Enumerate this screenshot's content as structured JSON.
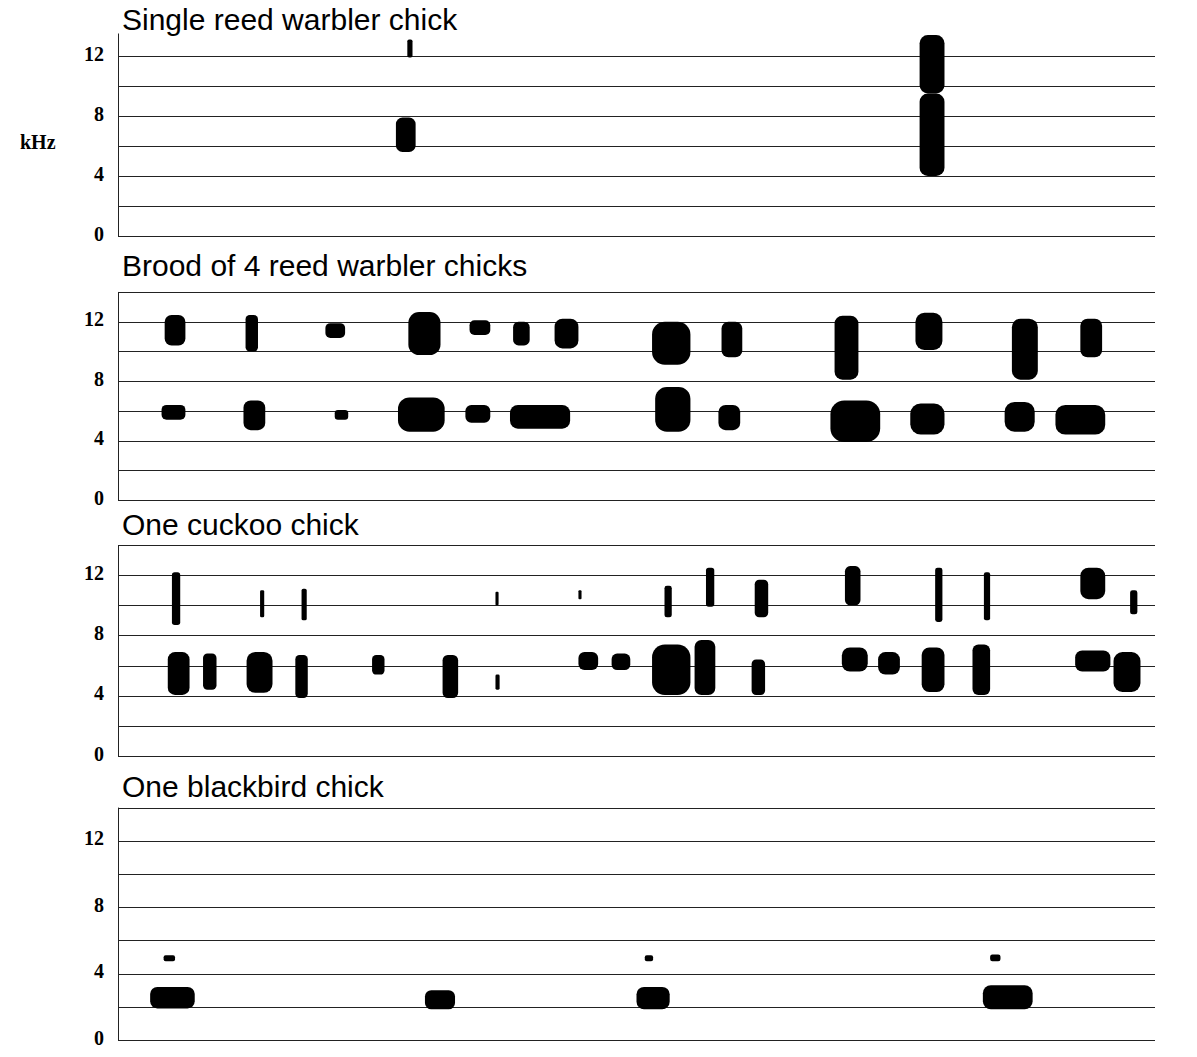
{
  "chart_data": [
    {
      "type": "spectrogram",
      "title": "Single reed warbler chick",
      "ylabel": "kHz",
      "xlim": [
        0,
        100
      ],
      "ylim": [
        0,
        13.5
      ],
      "yticks": [
        0,
        4,
        8,
        12
      ],
      "grid": true,
      "tick_labels": "y",
      "color": "#000000",
      "syllables": {
        "start": [
          26.8,
          27.9,
          77.3,
          77.3
        ],
        "end": [
          28.7,
          28.4,
          79.7,
          79.7
        ],
        "low": [
          5.6,
          11.9,
          4.0,
          9.5
        ],
        "high": [
          7.9,
          13.1,
          9.5,
          13.4
        ]
      }
    },
    {
      "type": "spectrogram",
      "title": "Brood of 4 reed warbler chicks",
      "xlim": [
        0,
        100
      ],
      "ylim": [
        0,
        14
      ],
      "yticks": [
        0,
        4,
        8,
        12
      ],
      "grid": true,
      "tick_labels": "y",
      "color": "#000000",
      "syllables": {
        "start": [
          4.5,
          12.3,
          20.0,
          28.0,
          33.9,
          38.1,
          42.1,
          51.5,
          58.2,
          69.1,
          76.9,
          86.2,
          92.8,
          4.2,
          12.1,
          20.9,
          27.0,
          33.5,
          37.8,
          51.8,
          57.9,
          68.7,
          76.4,
          85.5,
          90.4
        ],
        "end": [
          6.5,
          13.5,
          21.9,
          31.1,
          35.9,
          39.7,
          44.4,
          55.2,
          60.2,
          71.4,
          79.5,
          88.7,
          94.9,
          6.5,
          14.2,
          22.2,
          31.5,
          35.9,
          43.6,
          55.2,
          60.0,
          73.5,
          79.7,
          88.4,
          95.2
        ],
        "low": [
          10.4,
          10.0,
          10.9,
          9.75,
          11.1,
          10.4,
          10.2,
          9.1,
          9.6,
          8.1,
          10.1,
          8.1,
          9.6,
          5.4,
          4.7,
          5.4,
          4.6,
          5.2,
          4.8,
          4.6,
          4.7,
          3.9,
          4.4,
          4.6,
          4.4
        ],
        "high": [
          12.45,
          12.45,
          11.9,
          12.65,
          12.1,
          12.0,
          12.2,
          12.0,
          12.0,
          12.4,
          12.6,
          12.2,
          12.2,
          6.4,
          6.7,
          6.05,
          6.9,
          6.4,
          6.4,
          7.6,
          6.4,
          6.7,
          6.5,
          6.6,
          6.4
        ]
      }
    },
    {
      "type": "spectrogram",
      "title": "One cuckoo chick",
      "xlim": [
        0,
        100
      ],
      "ylim": [
        0,
        14
      ],
      "yticks": [
        0,
        4,
        8,
        12
      ],
      "grid": true,
      "tick_labels": "y",
      "color": "#000000",
      "syllables": {
        "start": [
          5.2,
          13.7,
          17.7,
          36.4,
          44.4,
          52.7,
          56.7,
          61.4,
          70.1,
          78.8,
          83.5,
          92.8,
          97.6,
          4.8,
          8.2,
          12.4,
          17.1,
          24.5,
          31.3,
          36.4,
          44.4,
          47.6,
          51.5,
          55.6,
          61.1,
          69.8,
          73.3,
          77.5,
          82.4,
          92.3,
          96.0
        ],
        "end": [
          6.0,
          14.1,
          18.2,
          36.7,
          44.7,
          53.4,
          57.5,
          62.7,
          71.6,
          79.5,
          84.1,
          95.2,
          98.3,
          6.9,
          9.5,
          14.9,
          18.3,
          25.7,
          32.8,
          36.8,
          46.3,
          49.4,
          55.2,
          57.6,
          62.4,
          72.3,
          75.4,
          79.7,
          84.1,
          95.7,
          98.6
        ],
        "low": [
          8.7,
          9.2,
          9.0,
          10.0,
          10.4,
          9.2,
          9.9,
          9.2,
          10.0,
          8.9,
          9.0,
          10.4,
          9.4,
          4.05,
          4.4,
          4.2,
          3.85,
          5.4,
          3.85,
          4.4,
          5.7,
          5.7,
          4.05,
          4.05,
          4.05,
          5.6,
          5.4,
          4.25,
          4.05,
          5.6,
          4.25
        ],
        "high": [
          12.2,
          11.0,
          11.1,
          10.9,
          11.0,
          11.3,
          12.5,
          11.7,
          12.6,
          12.5,
          12.2,
          12.5,
          11.0,
          6.9,
          6.8,
          6.9,
          6.7,
          6.7,
          6.7,
          5.4,
          6.9,
          6.8,
          7.4,
          7.7,
          6.4,
          7.2,
          6.9,
          7.2,
          7.4,
          7.0,
          6.9
        ]
      }
    },
    {
      "type": "spectrogram",
      "title": "One blackbird chick",
      "xlim": [
        0,
        100
      ],
      "ylim": [
        0,
        14
      ],
      "yticks": [
        0,
        4,
        8,
        12
      ],
      "grid": true,
      "tick_labels": "y",
      "color": "#000000",
      "syllables": {
        "start": [
          3.1,
          29.6,
          50.0,
          83.4,
          4.4,
          50.8,
          84.1
        ],
        "end": [
          7.4,
          32.5,
          53.2,
          88.2,
          5.5,
          51.6,
          85.1
        ],
        "low": [
          1.9,
          1.85,
          1.85,
          1.85,
          4.75,
          4.75,
          4.75
        ],
        "high": [
          3.2,
          3.0,
          3.2,
          3.3,
          5.1,
          5.1,
          5.15
        ]
      }
    }
  ]
}
